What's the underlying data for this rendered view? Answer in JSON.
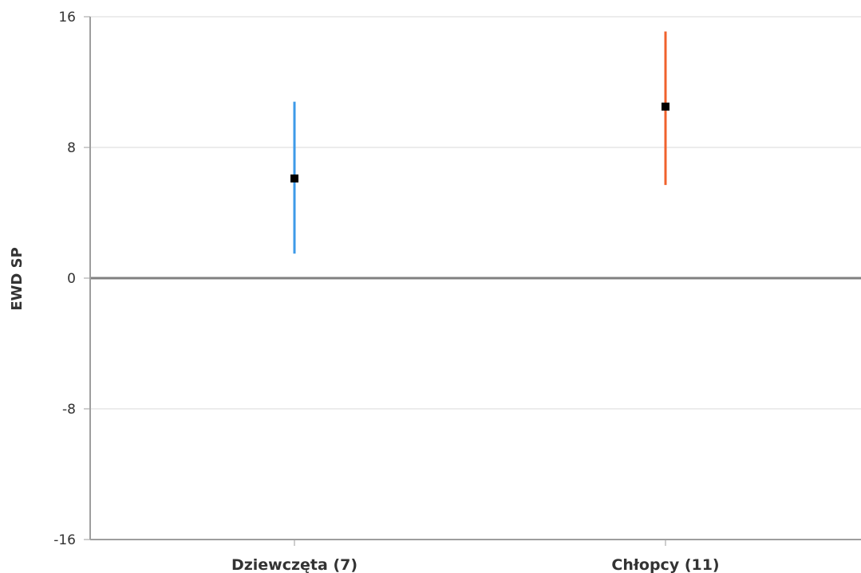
{
  "chart_data": {
    "type": "errorbar",
    "ylabel": "EWD SP",
    "xlabel": "",
    "ylim": [
      -16,
      16
    ],
    "yticks": [
      16,
      8,
      0,
      -8,
      -16
    ],
    "ytick_labels": [
      "16",
      "8",
      "0",
      "-8",
      "-16"
    ],
    "grid": true,
    "categories": [
      "Dziewczęta (7)",
      "Chłopcy (11)"
    ],
    "points": [
      {
        "category": "Dziewczęta (7)",
        "value": 6.1,
        "lower": 1.5,
        "upper": 10.8,
        "color": "#3d9ae8"
      },
      {
        "category": "Chłopcy (11)",
        "value": 10.5,
        "lower": 5.7,
        "upper": 15.1,
        "color": "#f0622d"
      }
    ]
  },
  "colors": {
    "grid": "#d9d9d9",
    "axis": "#9e9e9e",
    "zero_line": "#808080",
    "marker": "#000000"
  }
}
